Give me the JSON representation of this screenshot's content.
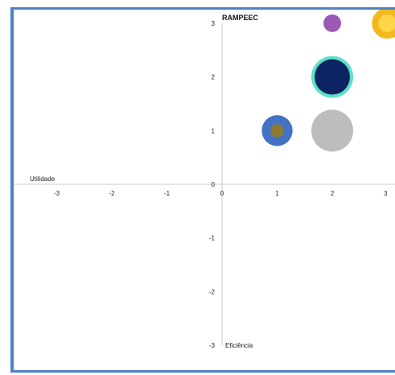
{
  "chart_data": {
    "type": "bubble",
    "title": "RAMPEEC",
    "xlabel": "Utilidade",
    "ylabel": "Eficiência",
    "xlim": [
      -3,
      3
    ],
    "ylim": [
      -3,
      3
    ],
    "x_ticks": [
      "-3",
      "-2",
      "-1",
      "0",
      "1",
      "2",
      "3"
    ],
    "y_ticks": [
      "3",
      "2",
      "1",
      "0",
      "-1",
      "-2",
      "-3"
    ],
    "grid": false,
    "series": [
      {
        "x": 1,
        "y": 1,
        "size": 0.28,
        "color": "#4472c4"
      },
      {
        "x": 1,
        "y": 1,
        "size": 0.12,
        "color": "#8c7a2e"
      },
      {
        "x": 2,
        "y": 1,
        "size": 0.38,
        "color": "#bdbdbd"
      },
      {
        "x": 2,
        "y": 2,
        "size": 0.38,
        "color": "#5ce1c8"
      },
      {
        "x": 2,
        "y": 2,
        "size": 0.32,
        "color": "#0c2461"
      },
      {
        "x": 2,
        "y": 3,
        "size": 0.16,
        "color": "#9b59b6"
      },
      {
        "x": 3,
        "y": 3,
        "size": 0.28,
        "color": "#f2b81f"
      },
      {
        "x": 3,
        "y": 3,
        "size": 0.16,
        "color": "#ffd64a"
      }
    ]
  }
}
